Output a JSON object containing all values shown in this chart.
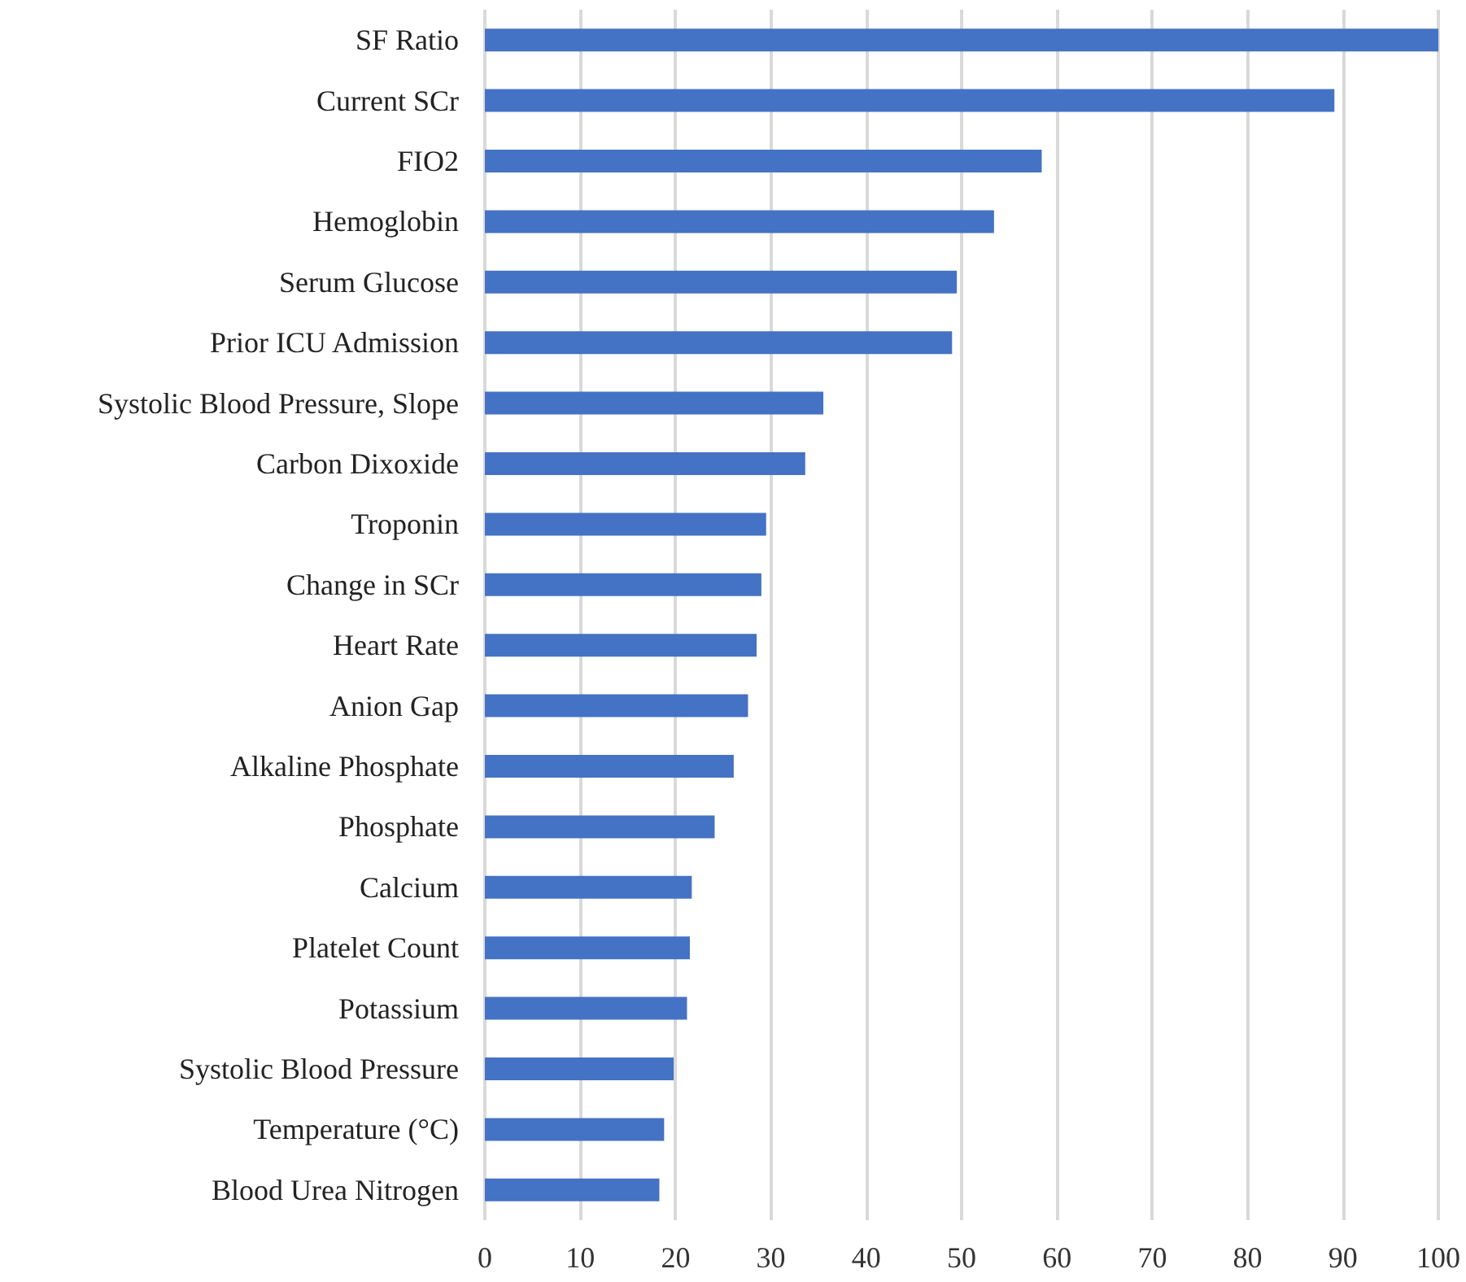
{
  "chart_data": {
    "type": "bar",
    "orientation": "horizontal",
    "categories": [
      "SF Ratio",
      "Current SCr",
      "FIO2",
      "Hemoglobin",
      "Serum Glucose",
      "Prior ICU Admission",
      "Systolic Blood Pressure, Slope",
      "Carbon Dixoxide",
      "Troponin",
      "Change in SCr",
      "Heart Rate",
      "Anion Gap",
      "Alkaline Phosphate",
      "Phosphate",
      "Calcium",
      "Platelet Count",
      "Potassium",
      "Systolic Blood Pressure",
      "Temperature (°C)",
      "Blood Urea Nitrogen"
    ],
    "values": [
      100,
      89.1,
      58.4,
      53.4,
      49.5,
      49.0,
      35.5,
      33.6,
      29.5,
      29.0,
      28.5,
      27.6,
      26.1,
      24.1,
      21.7,
      21.5,
      21.2,
      19.8,
      18.8,
      18.3
    ],
    "color": "#4472c4",
    "xlim": [
      0,
      100
    ],
    "xticks": [
      0,
      10,
      20,
      30,
      40,
      50,
      60,
      70,
      80,
      90,
      100
    ],
    "grid": "x"
  }
}
